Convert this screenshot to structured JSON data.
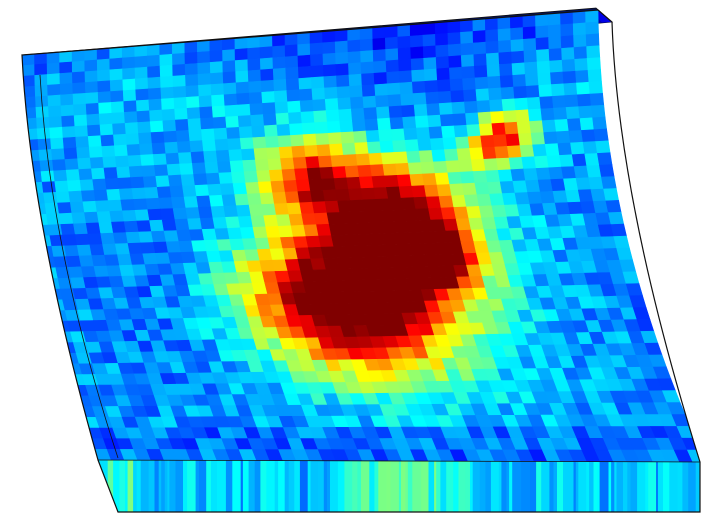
{
  "figure": {
    "description_colormap": "jet",
    "colors": {
      "background": "#ffffff",
      "edge": "#1a1a1a",
      "colormap_stops": [
        "#00008f",
        "#0000ff",
        "#0080ff",
        "#00ffff",
        "#80ff80",
        "#ffff00",
        "#ff8000",
        "#ff0000",
        "#800000"
      ]
    }
  }
}
